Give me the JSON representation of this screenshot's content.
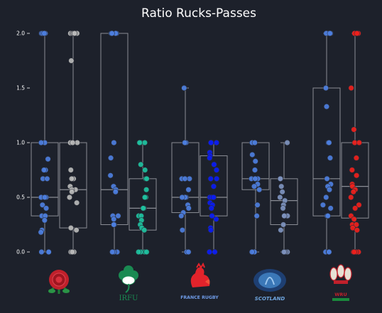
{
  "chart_data": {
    "type": "box",
    "title": "Ratio Rucks-Passes",
    "yticks": [
      0.0,
      0.5,
      1.0,
      1.5,
      2.0
    ],
    "ytick_labels": [
      "0.0",
      "0.5",
      "1.0",
      "1.5",
      "2.0"
    ],
    "ylim": [
      -0.05,
      2.1
    ],
    "teams": [
      {
        "name": "England",
        "logo_text": "",
        "series": [
          {
            "color": "#4d7fe0",
            "q1": 0.33,
            "median": 0.5,
            "q3": 1.0,
            "whisker_low": 0.0,
            "whisker_high": 2.0,
            "points": [
              2.0,
              2.0,
              2.0,
              2.0,
              2.0,
              1.0,
              1.0,
              0.85,
              0.75,
              0.75,
              0.67,
              0.67,
              0.5,
              0.5,
              0.5,
              0.43,
              0.4,
              0.33,
              0.33,
              0.29,
              0.2,
              0.18,
              0.0,
              0.0,
              0.0
            ]
          },
          {
            "color": "#b9b9b9",
            "q1": 0.22,
            "median": 0.57,
            "q3": 1.0,
            "whisker_low": 0.0,
            "whisker_high": 2.0,
            "points": [
              2.0,
              2.0,
              2.0,
              2.0,
              2.0,
              2.0,
              1.75,
              1.0,
              1.0,
              1.0,
              0.75,
              0.67,
              0.67,
              0.6,
              0.57,
              0.57,
              0.55,
              0.5,
              0.45,
              0.22,
              0.2,
              0.0,
              0.0,
              0.0,
              0.0
            ]
          }
        ]
      },
      {
        "name": "Ireland",
        "logo_text": "IRFU",
        "series": [
          {
            "color": "#4d7fe0",
            "q1": 0.25,
            "median": 0.57,
            "q3": 2.0,
            "whisker_low": 0.0,
            "whisker_high": 2.0,
            "points": [
              2.0,
              2.0,
              2.0,
              2.0,
              1.0,
              0.86,
              0.7,
              0.6,
              0.57,
              0.55,
              0.33,
              0.33,
              0.3,
              0.25,
              0.25,
              0.0,
              0.0,
              0.0,
              0.0
            ]
          },
          {
            "color": "#1fc2a0",
            "q1": 0.2,
            "median": 0.4,
            "q3": 0.67,
            "whisker_low": 0.0,
            "whisker_high": 1.0,
            "points": [
              1.0,
              1.0,
              1.0,
              0.8,
              0.75,
              0.67,
              0.67,
              0.57,
              0.5,
              0.5,
              0.4,
              0.4,
              0.33,
              0.33,
              0.29,
              0.25,
              0.22,
              0.2,
              0.0,
              0.0,
              0.0,
              0.0
            ]
          }
        ]
      },
      {
        "name": "France",
        "logo_text": "FRANCE RUGBY",
        "series": [
          {
            "color": "#4d7fe0",
            "q1": 0.36,
            "median": 0.5,
            "q3": 1.0,
            "whisker_low": 0.0,
            "whisker_high": 1.5,
            "points": [
              1.5,
              1.0,
              1.0,
              0.67,
              0.67,
              0.67,
              0.57,
              0.5,
              0.5,
              0.5,
              0.43,
              0.4,
              0.36,
              0.33,
              0.2,
              0.0,
              0.0,
              0.0,
              0.0
            ]
          },
          {
            "color": "#0a1cf5",
            "q1": 0.33,
            "median": 0.5,
            "q3": 0.88,
            "whisker_low": 0.0,
            "whisker_high": 1.0,
            "points": [
              1.0,
              1.0,
              1.0,
              0.91,
              0.88,
              0.86,
              0.8,
              0.75,
              0.67,
              0.67,
              0.6,
              0.5,
              0.5,
              0.5,
              0.45,
              0.43,
              0.4,
              0.33,
              0.3,
              0.22,
              0.2,
              0.0,
              0.0
            ]
          }
        ]
      },
      {
        "name": "Scotland",
        "logo_text": "SCOTLAND",
        "series": [
          {
            "color": "#4d7fe0",
            "q1": 0.57,
            "median": 0.67,
            "q3": 1.0,
            "whisker_low": 0.0,
            "whisker_high": 1.0,
            "points": [
              1.0,
              1.0,
              0.89,
              0.83,
              0.75,
              0.67,
              0.67,
              0.67,
              0.62,
              0.6,
              0.57,
              0.43,
              0.33,
              0.0,
              0.0,
              0.0
            ]
          },
          {
            "color": "#7e93bf",
            "q1": 0.25,
            "median": 0.47,
            "q3": 0.67,
            "whisker_low": 0.0,
            "whisker_high": 1.0,
            "points": [
              1.0,
              0.67,
              0.67,
              0.6,
              0.55,
              0.5,
              0.47,
              0.43,
              0.4,
              0.33,
              0.33,
              0.33,
              0.25,
              0.2,
              0.0,
              0.0,
              0.0
            ]
          }
        ]
      },
      {
        "name": "Wales",
        "logo_text": "WRU",
        "series": [
          {
            "color": "#4d7fe0",
            "q1": 0.33,
            "median": 0.67,
            "q3": 1.5,
            "whisker_low": 0.0,
            "whisker_high": 2.0,
            "points": [
              2.0,
              2.0,
              2.0,
              2.0,
              2.0,
              1.5,
              1.33,
              1.0,
              1.0,
              0.86,
              0.67,
              0.62,
              0.6,
              0.57,
              0.5,
              0.43,
              0.4,
              0.33,
              0.33,
              0.0,
              0.0,
              0.0
            ]
          },
          {
            "color": "#f0201c",
            "q1": 0.31,
            "median": 0.6,
            "q3": 1.0,
            "whisker_low": 0.0,
            "whisker_high": 2.0,
            "points": [
              2.0,
              2.0,
              2.0,
              2.0,
              1.5,
              1.12,
              1.0,
              1.0,
              0.86,
              0.75,
              0.7,
              0.62,
              0.6,
              0.57,
              0.55,
              0.5,
              0.43,
              0.4,
              0.33,
              0.3,
              0.25,
              0.25,
              0.22,
              0.2,
              0.0,
              0.0,
              0.0,
              0.0
            ]
          }
        ]
      }
    ]
  }
}
